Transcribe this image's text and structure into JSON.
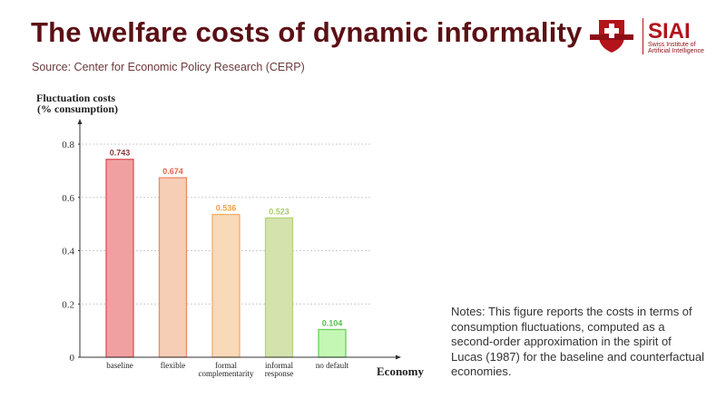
{
  "header": {
    "title": "The welfare costs of dynamic informality",
    "source": "Source: Center for Economic Policy Research (CERP)"
  },
  "logo": {
    "text": "SIAI",
    "subtitle_line1": "Swiss Institute of",
    "subtitle_line2": "Artificial Intelligence",
    "color": "#b3131b"
  },
  "notes": "Notes: This figure reports the costs in terms of consumption fluctuations, computed as a second-order approximation in the spirit of Lucas (1987) for the baseline and counterfactual economies.",
  "chart_data": {
    "type": "bar",
    "ylabel_line1": "Fluctuation costs",
    "ylabel_line2": "(% consumption)",
    "xlabel": "Economy",
    "ylim": [
      0,
      0.8
    ],
    "yticks": [
      "0",
      "0.2",
      "0.4",
      "0.6",
      "0.8"
    ],
    "grid": true,
    "categories": [
      [
        "baseline"
      ],
      [
        "flexible"
      ],
      [
        "formal",
        "complementarity"
      ],
      [
        "informal",
        "response"
      ],
      [
        "no default"
      ]
    ],
    "values": [
      0.743,
      0.674,
      0.536,
      0.523,
      0.104
    ],
    "data_labels": [
      "0.743",
      "0.674",
      "0.536",
      "0.523",
      "0.104"
    ],
    "colors": [
      {
        "fill": "#f0a0a0",
        "stroke": "#d9545a",
        "label": "#8b3a3a"
      },
      {
        "fill": "#f6cdb5",
        "stroke": "#ee8a6c",
        "label": "#e8604a"
      },
      {
        "fill": "#f8d9b8",
        "stroke": "#f4ad6c",
        "label": "#f0a040"
      },
      {
        "fill": "#d4e2ae",
        "stroke": "#b6d47c",
        "label": "#a8cc6a"
      },
      {
        "fill": "#c4f7b4",
        "stroke": "#6ccf5e",
        "label": "#58c050"
      }
    ]
  }
}
